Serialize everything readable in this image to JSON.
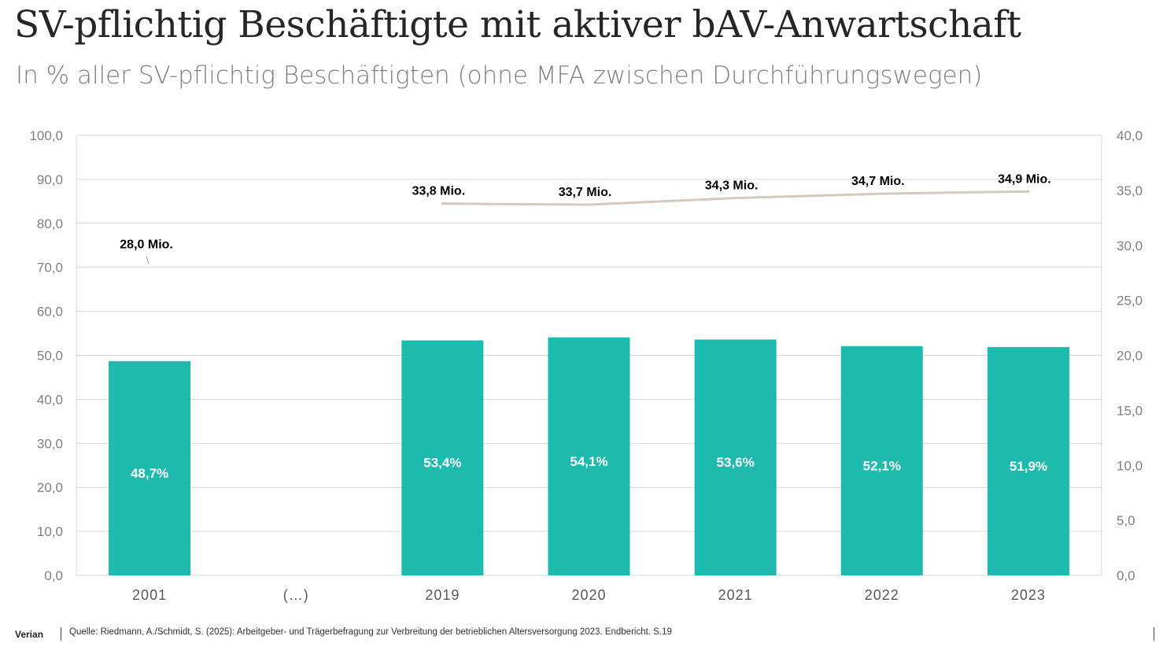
{
  "header": {
    "title": "SV-pflichtig Beschäftigte mit aktiver bAV-Anwartschaft",
    "subtitle": "In % aller SV-pflichtig Beschäftigten (ohne MFA zwischen Durchführungswegen)"
  },
  "footer": {
    "brand": "Verian",
    "source": "Quelle: Riedmann, A./Schmidt, S. (2025): Arbeitgeber- und Trägerbefragung zur Verbreitung der betrieblichen Altersversorgung 2023. Endbericht. S.19"
  },
  "colors": {
    "bar": "#1fbaae",
    "line": "#d5c8bd",
    "grid": "#d9d9d9",
    "axis_text": "#7f7f7f"
  },
  "chart_data": {
    "type": "bar",
    "categories": [
      "2001",
      "(…)",
      "2019",
      "2020",
      "2021",
      "2022",
      "2023"
    ],
    "series": [
      {
        "axis": "left",
        "type": "bar",
        "values": [
          48.7,
          null,
          53.4,
          54.1,
          53.6,
          52.1,
          51.9
        ],
        "labels": [
          "48,7%",
          "",
          "53,4%",
          "54,1%",
          "53,6%",
          "52,1%",
          "51,9%"
        ]
      },
      {
        "axis": "right",
        "type": "line",
        "values": [
          28.0,
          null,
          33.8,
          33.7,
          34.3,
          34.7,
          34.9
        ],
        "labels": [
          "28,0 Mio.",
          "",
          "33,8 Mio.",
          "33,7 Mio.",
          "34,3 Mio.",
          "34,7 Mio.",
          "34,9 Mio."
        ]
      }
    ],
    "y_left": {
      "ylim": [
        0,
        100
      ],
      "ticks": [
        "0,0",
        "10,0",
        "20,0",
        "30,0",
        "40,0",
        "50,0",
        "60,0",
        "70,0",
        "80,0",
        "90,0",
        "100,0"
      ]
    },
    "y_right": {
      "ylim": [
        0,
        40
      ],
      "ticks": [
        "0,0",
        "5,0",
        "10,0",
        "15,0",
        "20,0",
        "25,0",
        "30,0",
        "35,0",
        "40,0"
      ]
    },
    "grid": true,
    "legend": "none"
  }
}
